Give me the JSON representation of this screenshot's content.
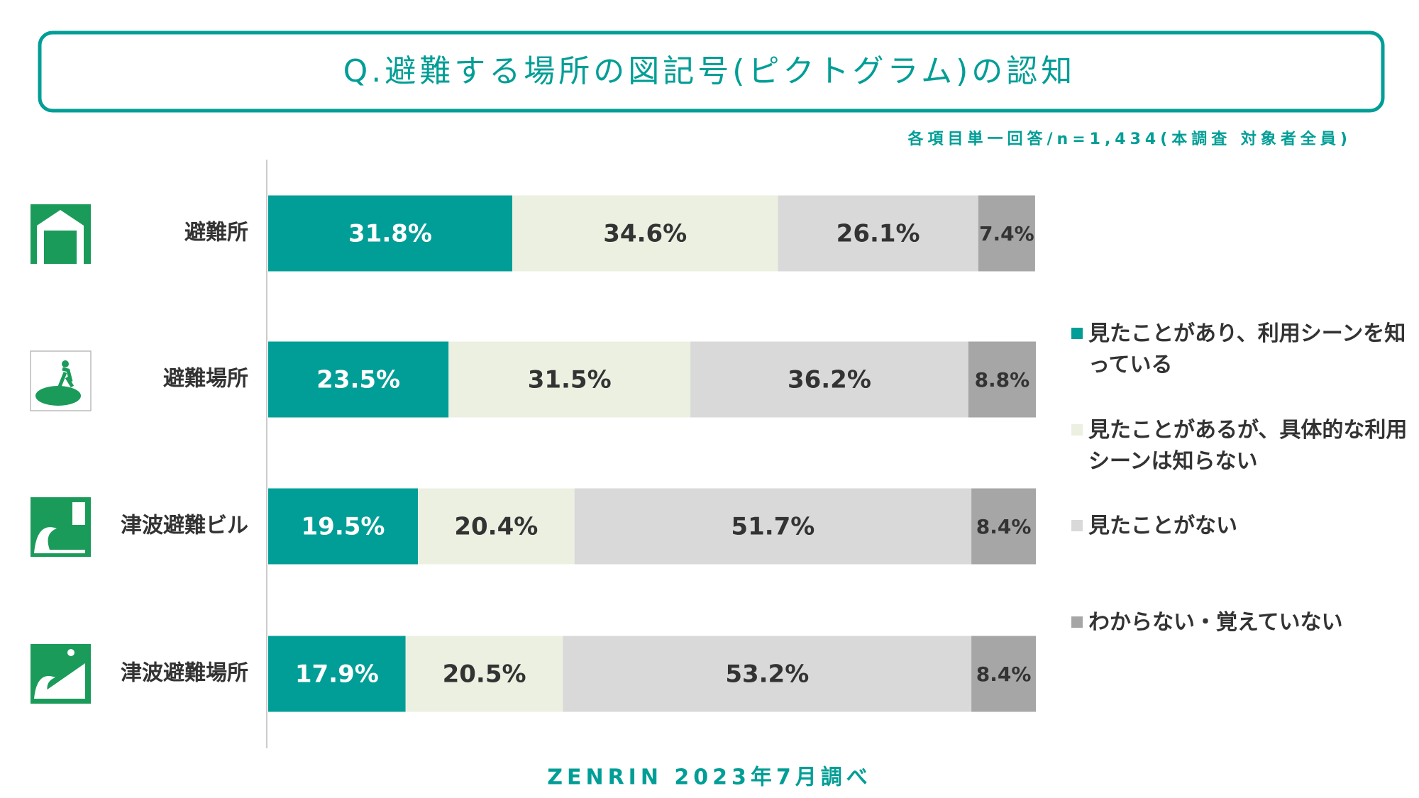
{
  "chart_data": {
    "type": "bar",
    "orientation": "horizontal",
    "stacked": true,
    "title": "Q.避難する場所の図記号(ピクトグラム)の認知",
    "subtitle": "各項目単一回答/n=1,434(本調査 対象者全員)",
    "footer": "ZENRIN 2023年7月調べ",
    "categories": [
      "避難所",
      "避難場所",
      "津波避難ビル",
      "津波避難場所"
    ],
    "xlim": [
      0,
      100
    ],
    "series": [
      {
        "name": "見たことがあり、利用シーンを知っている",
        "color": "#009e96",
        "values": [
          31.8,
          23.5,
          19.5,
          17.9
        ],
        "value_labels": [
          "31.8%",
          "23.5%",
          "19.5%",
          "17.9%"
        ]
      },
      {
        "name": "見たことがあるが、具体的な利用シーンは知らない",
        "color": "#ebf0e1",
        "values": [
          34.6,
          31.5,
          20.4,
          20.5
        ],
        "value_labels": [
          "34.6%",
          "31.5%",
          "20.4%",
          "20.5%"
        ]
      },
      {
        "name": "見たことがない",
        "color": "#d9d9d9",
        "values": [
          26.1,
          36.2,
          51.7,
          53.2
        ],
        "value_labels": [
          "26.1%",
          "36.2%",
          "51.7%",
          "53.2%"
        ]
      },
      {
        "name": "わからない・覚えていない",
        "color": "#a6a6a6",
        "values": [
          7.4,
          8.8,
          8.4,
          8.4
        ],
        "value_labels": [
          "7.4%",
          "8.8%",
          "8.4%",
          "8.4%"
        ]
      }
    ]
  }
}
